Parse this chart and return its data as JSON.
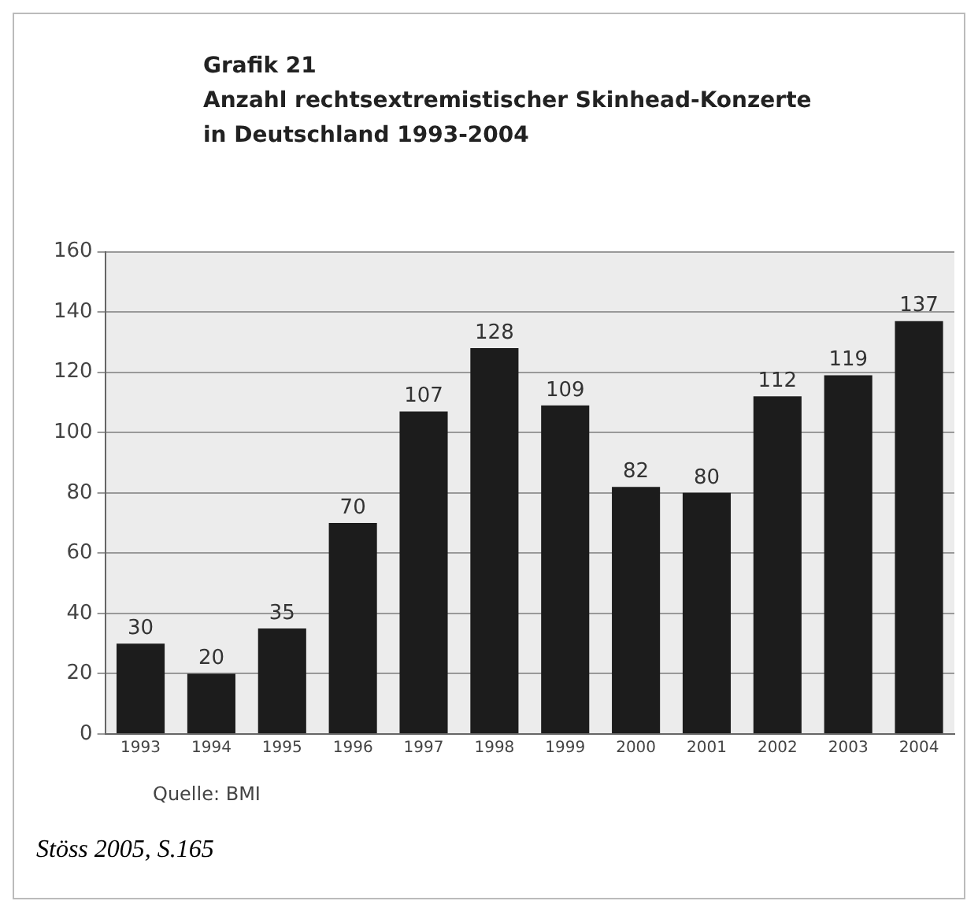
{
  "chart_data": {
    "type": "bar",
    "title": "Grafik 21\nAnzahl rechtsextremistischer Skinhead-Konzerte\nin Deutschland 1993-2004",
    "categories": [
      "1993",
      "1994",
      "1995",
      "1996",
      "1997",
      "1998",
      "1999",
      "2000",
      "2001",
      "2002",
      "2003",
      "2004"
    ],
    "values": [
      30,
      20,
      35,
      70,
      107,
      128,
      109,
      82,
      80,
      112,
      119,
      137
    ],
    "color": "#1c1c1c",
    "ylim": [
      0,
      160
    ],
    "yticks": [
      0,
      20,
      40,
      60,
      80,
      100,
      120,
      140,
      160
    ],
    "grid": "y",
    "data_labels": true,
    "annotations": [
      "Quelle: BMI",
      "Stöss 2005, S.165"
    ]
  }
}
